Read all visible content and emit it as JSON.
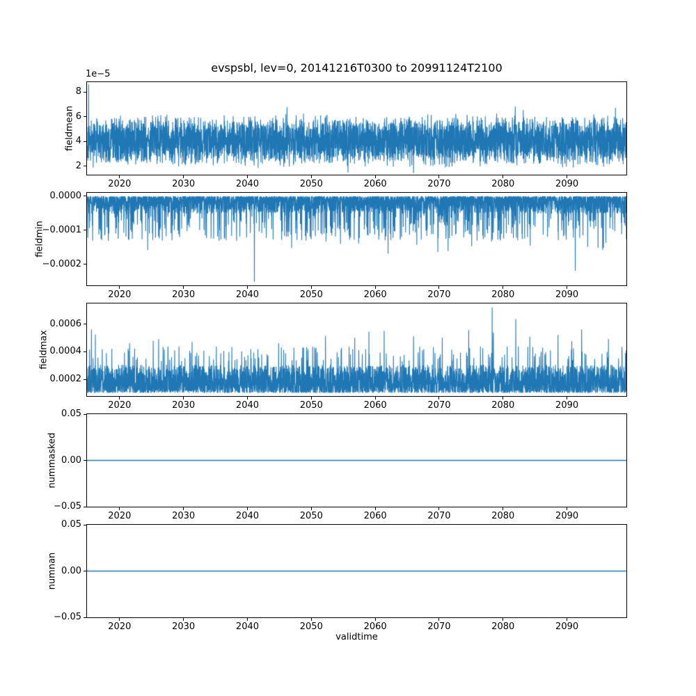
{
  "title": "evspsbl, lev=0, 20141216T0300 to 20991124T2100",
  "xlabel": "validtime",
  "line_color": "#1f77b4",
  "background": "#ffffff",
  "x_range": [
    2014.9,
    2099.3
  ],
  "x_ticks": [
    {
      "value": 2020,
      "label": "2020"
    },
    {
      "value": 2030,
      "label": "2030"
    },
    {
      "value": 2040,
      "label": "2040"
    },
    {
      "value": 2050,
      "label": "2050"
    },
    {
      "value": 2060,
      "label": "2060"
    },
    {
      "value": 2070,
      "label": "2070"
    },
    {
      "value": 2080,
      "label": "2080"
    },
    {
      "value": 2090,
      "label": "2090"
    }
  ],
  "chart_data": [
    {
      "name": "fieldmean",
      "type": "line",
      "ylabel": "fieldmean",
      "offset_text": "1e−5",
      "ylim": [
        1.3e-05,
        8.8e-05
      ],
      "y_ticks": [
        {
          "value": 2e-05,
          "label": "2"
        },
        {
          "value": 4e-05,
          "label": "4"
        },
        {
          "value": 6e-05,
          "label": "6"
        },
        {
          "value": 8e-05,
          "label": "8"
        }
      ],
      "description": "Dense noisy band between ~2e-5 and ~6e-5 over 2015-2099, with an initial spike to ~8.6e-5 at the left edge.",
      "series": {
        "kind": "noise-band",
        "seed": 101,
        "n": 4000,
        "base": 4.05e-05,
        "half_min": 1.05e-05,
        "half_max": 2.2e-05,
        "outlier_prob": 0.004,
        "outlier_extra": 9e-06,
        "clamp_lo": 1.5e-05,
        "clamp_hi": 7e-05,
        "spikes": [
          {
            "x": 2015.15,
            "v": 8.6e-05
          },
          {
            "x": 2046.2,
            "v": 6.75e-05
          },
          {
            "x": 2066.0,
            "v": 1.45e-05
          },
          {
            "x": 2081.9,
            "v": 6.8e-05
          },
          {
            "x": 2097.6,
            "v": 6.7e-05
          }
        ]
      }
    },
    {
      "name": "fieldmin",
      "type": "line",
      "ylabel": "fieldmin",
      "offset_text": "",
      "ylim": [
        -0.000262,
        1e-05
      ],
      "y_ticks": [
        {
          "value": 0,
          "label": "0.0000"
        },
        {
          "value": -0.0001,
          "label": "−0.0001"
        },
        {
          "value": -0.0002,
          "label": "−0.0002"
        }
      ],
      "description": "Values hug 0 with frequent downward spikes to -0.0001..-0.00017; deepest ~-0.00025 near 2041 and ~-0.00022 near 2091.",
      "series": {
        "kind": "spikes-down",
        "seed": 202,
        "n": 4000,
        "base_off": 1e-06,
        "pow": 2.2,
        "dense_amp": 5e-05,
        "mid_prob": 0.1,
        "mid_lo": 5.5e-05,
        "mid_amp": 7.5e-05,
        "deep_prob": 0.002,
        "deep_lo": 0.000125,
        "deep_amp": 4.5e-05,
        "spikes": [
          {
            "x": 2017.2,
            "v": -0.000128
          },
          {
            "x": 2021.0,
            "v": -0.000118
          },
          {
            "x": 2024.4,
            "v": -0.000157
          },
          {
            "x": 2033.6,
            "v": -0.000122
          },
          {
            "x": 2041.1,
            "v": -0.00025
          },
          {
            "x": 2048.5,
            "v": -0.000128
          },
          {
            "x": 2052.3,
            "v": -0.000132
          },
          {
            "x": 2057.4,
            "v": -0.000138
          },
          {
            "x": 2062.0,
            "v": -0.000168
          },
          {
            "x": 2066.5,
            "v": -0.000142
          },
          {
            "x": 2069.8,
            "v": -0.000163
          },
          {
            "x": 2071.4,
            "v": -0.00016
          },
          {
            "x": 2075.1,
            "v": -0.000146
          },
          {
            "x": 2078.2,
            "v": -0.000132
          },
          {
            "x": 2083.0,
            "v": -0.000125
          },
          {
            "x": 2091.3,
            "v": -0.000218
          },
          {
            "x": 2096.1,
            "v": -0.000136
          }
        ]
      }
    },
    {
      "name": "fieldmax",
      "type": "line",
      "ylabel": "fieldmax",
      "offset_text": "",
      "ylim": [
        8e-05,
        0.00075
      ],
      "y_ticks": [
        {
          "value": 0.0002,
          "label": "0.0002"
        },
        {
          "value": 0.0004,
          "label": "0.0004"
        },
        {
          "value": 0.0006,
          "label": "0.0006"
        }
      ],
      "description": "Dense band ~0.0001-0.00035 with upward spikes to ~0.00055; tallest spike ~0.00072 near 2078 and ~0.00063 near 2082.",
      "series": {
        "kind": "spikes-up",
        "seed": 303,
        "n": 4000,
        "floor": 0.000105,
        "pow": 1.7,
        "dense_amp": 0.0002,
        "mid_prob": 0.035,
        "mid_lo": 0.00033,
        "mid_amp": 0.00011,
        "deep_prob": 0.004,
        "deep_lo": 0.00044,
        "deep_amp": 0.00012,
        "spikes": [
          {
            "x": 2015.6,
            "v": 0.00056
          },
          {
            "x": 2026.1,
            "v": 0.00049
          },
          {
            "x": 2044.9,
            "v": 0.00046
          },
          {
            "x": 2056.8,
            "v": 0.0005
          },
          {
            "x": 2059.0,
            "v": 0.000545
          },
          {
            "x": 2061.4,
            "v": 0.00055
          },
          {
            "x": 2066.0,
            "v": 0.00051
          },
          {
            "x": 2070.5,
            "v": 0.0005
          },
          {
            "x": 2078.3,
            "v": 0.00072
          },
          {
            "x": 2082.0,
            "v": 0.000635
          },
          {
            "x": 2088.6,
            "v": 0.00052
          },
          {
            "x": 2092.3,
            "v": 0.00056
          },
          {
            "x": 2096.5,
            "v": 0.00049
          }
        ]
      }
    },
    {
      "name": "nummasked",
      "type": "line",
      "ylabel": "nummasked",
      "offset_text": "",
      "ylim": [
        -0.05,
        0.05
      ],
      "y_ticks": [
        {
          "value": 0.05,
          "label": "0.05"
        },
        {
          "value": 0,
          "label": "0.00"
        },
        {
          "value": -0.05,
          "label": "−0.05"
        }
      ],
      "description": "Constant zero for the whole period.",
      "series": {
        "kind": "constant",
        "value": 0,
        "n": 2,
        "spikes": []
      }
    },
    {
      "name": "numnan",
      "type": "line",
      "ylabel": "numnan",
      "offset_text": "",
      "ylim": [
        -0.05,
        0.05
      ],
      "y_ticks": [
        {
          "value": 0.05,
          "label": "0.05"
        },
        {
          "value": 0,
          "label": "0.00"
        },
        {
          "value": -0.05,
          "label": "−0.05"
        }
      ],
      "description": "Constant zero for the whole period.",
      "series": {
        "kind": "constant",
        "value": 0,
        "n": 2,
        "spikes": []
      }
    }
  ]
}
